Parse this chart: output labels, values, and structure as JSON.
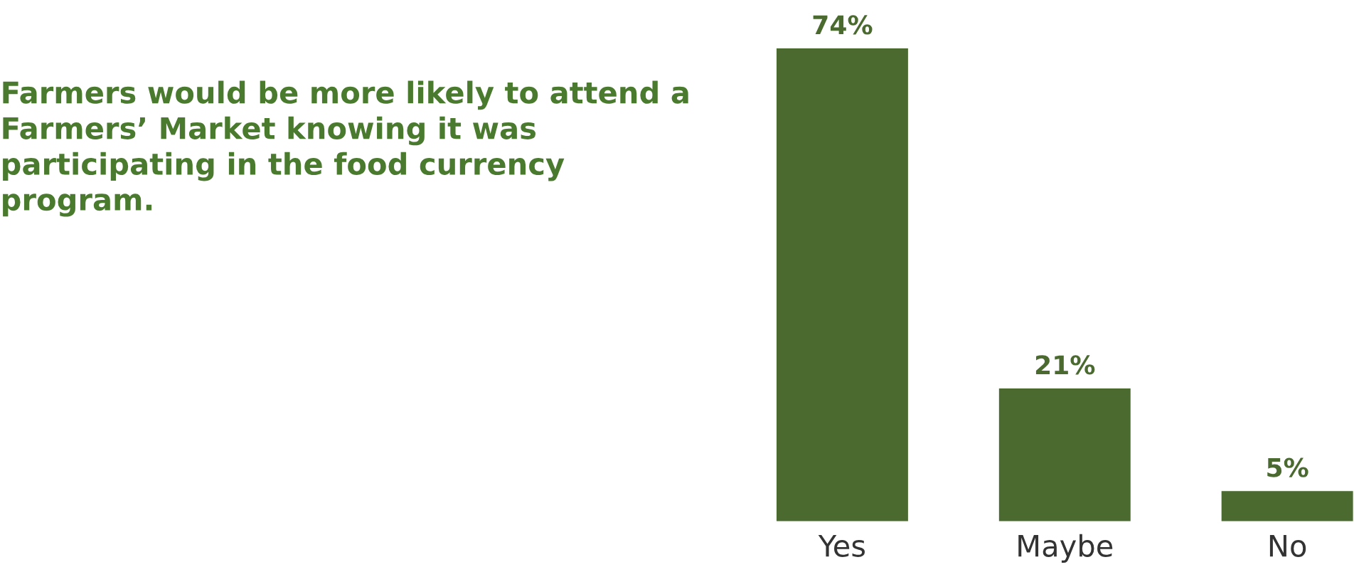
{
  "chart_data": {
    "type": "bar",
    "title": "Farmers would be more likely to attend a Farmers’ Market knowing it was participating in the food currency program.",
    "categories": [
      "Yes",
      "Maybe",
      "No"
    ],
    "values": [
      74,
      21,
      5
    ],
    "value_labels": [
      "74%",
      "21%",
      "5%"
    ],
    "color": "#4a6a30",
    "grid": false,
    "legend": false
  }
}
